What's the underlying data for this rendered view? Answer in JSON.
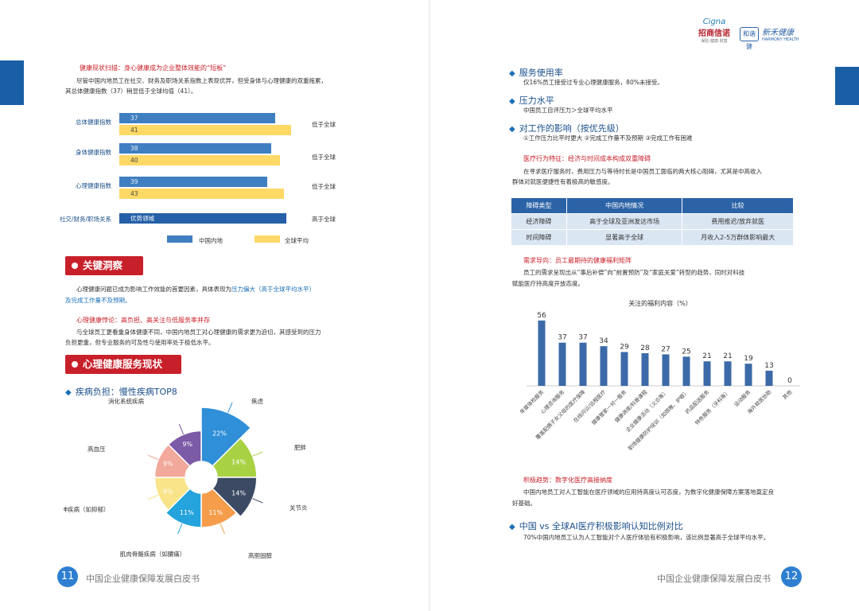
{
  "left": {
    "intro_title": "健康现状扫描：身心健康成为企业整体效能的“短板”",
    "intro_line1": "尽管中国内地员工在社交、财务及职场关系指数上表现优异，但受身体与心理健康的双重拖累，",
    "intro_line2": "其总体健康指数（37）稍显低于全球均值（41）。",
    "bar_chart": {
      "rows": [
        {
          "label": "总体健康指数",
          "cn": "37",
          "global": "41",
          "note": "低于全球"
        },
        {
          "label": "身体健康指数",
          "cn": "38",
          "global": "40",
          "note": "低于全球"
        },
        {
          "label": "心理健康指数",
          "cn": "39",
          "global": "43",
          "note": "低于全球"
        },
        {
          "label": "社交/财务/职场关系",
          "cn": "优势领域",
          "global": null,
          "note": "高于全球"
        }
      ],
      "legend_cn": "中国内地",
      "legend_global": "全球平均",
      "colors": {
        "cn": "#3f7fc1",
        "global": "#ffd966"
      }
    },
    "insight_badge": "关键洞察",
    "insight_line1": "心理健康问题已成为影响工作效能的首要因素，具体表现为",
    "insight_highlight": "压力偏大（高于全球平均水平）",
    "insight_line2": "及完成工作量不及预期。",
    "paradox_title": "心理健康悖论：高负担、高关注与低服务率并存",
    "paradox_line1": "与全球员工更看重身体健康不同，中国内地员工对心理健康的需求更为迫切，其感受到的压力",
    "paradox_line2": "负担更重，但专业服务的可及性与使用率处于极低水平。",
    "service_badge": "心理健康服务现状",
    "disease_heading": "疾病负担：慢性疾病TOP8",
    "disease_chart": {
      "slices": [
        {
          "name": "焦虑",
          "pct": 22,
          "label": "22%",
          "color": "#2f8fd8"
        },
        {
          "name": "肥胖",
          "pct": 14,
          "label": "14%",
          "color": "#a9d144"
        },
        {
          "name": "关节炎",
          "pct": 14,
          "label": "14%",
          "color": "#3c4a64"
        },
        {
          "name": "高胆固醇",
          "pct": 11,
          "label": "11%",
          "color": "#f59d4b"
        },
        {
          "name": "肌肉骨骼疾病（如腰痛）",
          "pct": 11,
          "label": "11%",
          "color": "#25a3dc"
        },
        {
          "name": "精神疾病（如抑郁）",
          "pct": 9,
          "label": "9%",
          "color": "#f9e48a"
        },
        {
          "name": "高血压",
          "pct": 9,
          "label": "9%",
          "color": "#f2a89a"
        },
        {
          "name": "消化系统疾病",
          "pct": 9,
          "label": "9%",
          "color": "#7b5aa6"
        }
      ]
    },
    "footer_num": "11",
    "footer_text": "中国企业健康保障发展白皮书"
  },
  "right": {
    "logos": {
      "cigna_en": "Cigna",
      "cigna_cn": "招商信诺",
      "cigna_tag": "保险·健康·财富",
      "hm_box": "和谐健",
      "hm_name": "新禾健康",
      "hm_en": "HARMONY HEALTH"
    },
    "usage_heading": "服务使用率",
    "usage_text": "仅16%员工接受过专业心理健康服务，80%未接受。",
    "stress_heading": "压力水平",
    "stress_text": "中国员工自评压力＞全球平均水平",
    "impact_heading": "对工作的影响（按优先级）",
    "impact_text": "①工作压力比平时更大 ②完成工作量不及预期 ③完成工作有困难",
    "medical_title": "医疗行为特征：经济与时间成本构成双重障碍",
    "medical_line1": "在寻求医疗服务时，费用压力与等待时长是中国员工面临的两大核心阻碍，尤其是中高收入",
    "medical_line2": "群体对就医便捷性有着极高的敏感度。",
    "table": {
      "headers": [
        "障碍类型",
        "中国内地情况",
        "比较"
      ],
      "rows": [
        [
          "经济障碍",
          "高于全球及亚洲发达市场",
          "费用推迟/放弃就医"
        ],
        [
          "时间障碍",
          "显著高于全球",
          "月收入2-5万群体影响最大"
        ]
      ]
    },
    "demand_title": "需求导向：员工最期待的健康福利矩阵",
    "demand_line1": "员工的需求呈现出从“事后补偿”向“前置预防”及“家庭关爱”转型的趋势，同时对科技",
    "demand_line2": "赋能医疗持高度开放态度。",
    "chart_data": {
      "type": "bar",
      "title": "关注的福利内容（%）",
      "categories": [
        "年度体检服务",
        "心理咨询服务",
        "覆盖配偶子女父母的医疗保障",
        "在线问诊/远程医疗",
        "健康管家一对一服务",
        "健康讲座/科普课程",
        "企业健康活动（义诊等）",
        "职场健康防护培训（如颈椎、护眼）",
        "药品配送服务",
        "特色服务（牙科等）",
        "运动服务",
        "海外就医协助",
        "其他"
      ],
      "values": [
        56,
        37,
        37,
        34,
        29,
        28,
        27,
        25,
        21,
        21,
        19,
        13,
        0
      ],
      "ylim": [
        0,
        60
      ],
      "color": "#3c6aa8"
    },
    "trend_title": "积极趋势：数字化医疗高接纳度",
    "trend_line1": "中国内地员工对人工智能在医疗领域的应用持高度认可态度，为数字化健康保障方案落地奠定良",
    "trend_line2": "好基础。",
    "ai_heading": "中国 vs 全球AI医疗积极影响认知比例对比",
    "ai_text": "70%中国内地员工认为人工智能对个人医疗体验有积极影响，该比例显著高于全球平均水平。",
    "footer_num": "12",
    "footer_text": "中国企业健康保障发展白皮书"
  }
}
